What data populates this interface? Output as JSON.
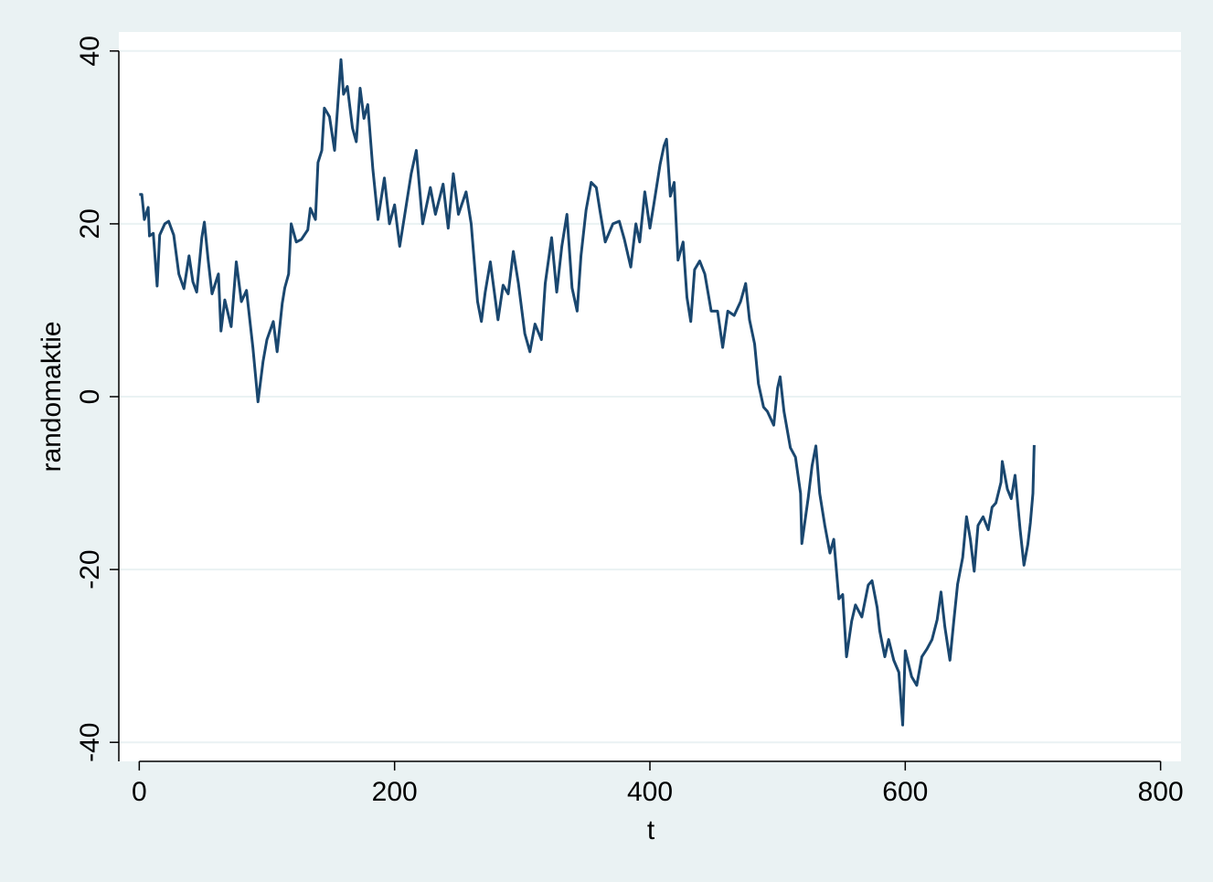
{
  "chart_data": {
    "type": "line",
    "x_label": "t",
    "y_label": "randomaktie",
    "color": "#1a476f",
    "grid": true,
    "xlim": [
      -16,
      816
    ],
    "ylim": [
      -42.2,
      42.2
    ],
    "xticks": [
      0,
      200,
      400,
      600,
      800
    ],
    "yticks": [
      -40,
      -20,
      0,
      20,
      40
    ],
    "x": [
      0,
      2,
      4,
      7,
      8,
      11,
      14,
      16,
      20,
      23,
      27,
      31,
      35,
      39,
      42,
      45,
      49,
      51,
      54,
      57,
      62,
      64,
      67,
      72,
      76,
      80,
      84,
      89,
      93,
      97,
      100,
      105,
      108,
      112,
      114,
      117,
      119,
      123,
      127,
      132,
      134,
      138,
      140,
      143,
      145,
      149,
      153,
      156,
      158,
      160,
      163,
      167,
      170,
      173,
      176,
      179,
      183,
      187,
      192,
      196,
      200,
      204,
      208,
      213,
      217,
      222,
      228,
      232,
      238,
      242,
      246,
      250,
      256,
      260,
      265,
      268,
      271,
      275,
      281,
      285,
      289,
      293,
      297,
      302,
      306,
      310,
      315,
      318,
      323,
      327,
      331,
      335,
      339,
      343,
      346,
      350,
      354,
      358,
      361,
      365,
      371,
      376,
      380,
      385,
      389,
      392,
      396,
      400,
      403,
      408,
      411,
      413,
      416,
      419,
      422,
      426,
      429,
      432,
      435,
      439,
      443,
      448,
      453,
      457,
      461,
      466,
      471,
      475,
      478,
      482,
      485,
      489,
      492,
      497,
      500,
      502,
      505,
      510,
      514,
      518,
      519,
      524,
      527,
      530,
      533,
      537,
      541,
      544,
      548,
      551,
      554,
      558,
      561,
      566,
      571,
      574,
      578,
      580,
      584,
      587,
      591,
      595,
      598,
      600,
      605,
      609,
      613,
      617,
      621,
      625,
      628,
      631,
      635,
      638,
      641,
      645,
      648,
      651,
      654,
      657,
      661,
      665,
      668,
      671,
      675,
      676,
      680,
      683,
      686,
      690,
      693,
      696,
      698,
      700,
      701
    ],
    "values": [
      23.4,
      23.4,
      20.5,
      21.9,
      18.6,
      18.9,
      12.8,
      18.7,
      20,
      20.3,
      18.7,
      14.2,
      12.5,
      16.3,
      13.3,
      12.1,
      18.4,
      20.2,
      15.8,
      11.9,
      14.2,
      7.6,
      11.2,
      8.1,
      15.6,
      11,
      12.3,
      5.7,
      -0.6,
      4.1,
      6.6,
      8.7,
      5.2,
      10.8,
      12.6,
      14.2,
      20,
      17.9,
      18.2,
      19.3,
      21.8,
      20.5,
      27.1,
      28.5,
      33.4,
      32.4,
      28.5,
      34.8,
      39,
      35,
      35.9,
      31.1,
      29.5,
      35.7,
      32.2,
      33.8,
      26.3,
      20.5,
      25.3,
      20,
      22.2,
      17.4,
      21.1,
      25.8,
      28.5,
      20,
      24.2,
      21.1,
      24.6,
      19.5,
      25.8,
      21.1,
      23.7,
      20,
      11,
      8.7,
      12.1,
      15.6,
      8.9,
      12.9,
      11.9,
      16.8,
      13.1,
      7.3,
      5.2,
      8.4,
      6.6,
      13.1,
      18.4,
      12.1,
      17.4,
      21.1,
      12.6,
      9.9,
      16.3,
      21.6,
      24.8,
      24.2,
      21.4,
      17.9,
      20,
      20.3,
      18.2,
      15,
      20,
      17.9,
      23.7,
      19.5,
      22.2,
      26.9,
      29,
      29.8,
      23.2,
      24.8,
      15.8,
      17.9,
      11.5,
      8.7,
      14.7,
      15.7,
      14.2,
      9.9,
      9.9,
      5.7,
      9.9,
      9.4,
      11,
      13.1,
      8.9,
      6.1,
      1.5,
      -1.2,
      -1.7,
      -3.3,
      1,
      2.3,
      -1.7,
      -5.9,
      -7,
      -11.2,
      -17,
      -11.7,
      -8,
      -5.7,
      -11.2,
      -14.9,
      -18.1,
      -16.5,
      -23.4,
      -22.9,
      -30.1,
      -26,
      -24.1,
      -25.5,
      -21.8,
      -21.3,
      -24.4,
      -27.1,
      -30.1,
      -28.1,
      -30.5,
      -31.9,
      -38,
      -29.4,
      -32.4,
      -33.4,
      -30.1,
      -29.2,
      -28.1,
      -25.8,
      -22.6,
      -26.6,
      -30.5,
      -26,
      -21.7,
      -18.6,
      -13.9,
      -16.5,
      -20.2,
      -14.9,
      -13.9,
      -15.4,
      -12.8,
      -12.3,
      -9.9,
      -7.5,
      -10.7,
      -11.8,
      -9.1,
      -15.4,
      -19.5,
      -17.1,
      -14.6,
      -11.2,
      -5.6
    ]
  }
}
